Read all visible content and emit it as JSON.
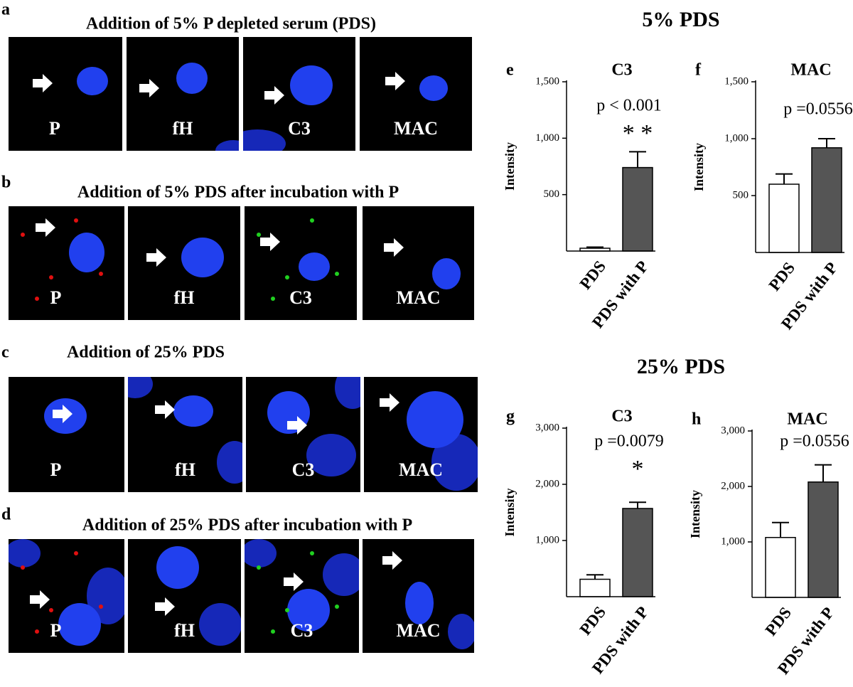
{
  "image_panels": [
    {
      "letter": "a",
      "title": "Addition of 5% P depleted serum (PDS)",
      "labels": [
        "P",
        "fH",
        "C3",
        "MAC"
      ]
    },
    {
      "letter": "b",
      "title": "Addition of 5% PDS after incubation with P",
      "labels": [
        "P",
        "fH",
        "C3",
        "MAC"
      ]
    },
    {
      "letter": "c",
      "title": "Addition of 25% PDS",
      "labels": [
        "P",
        "fH",
        "C3",
        "MAC"
      ]
    },
    {
      "letter": "d",
      "title": "Addition of 25% PDS after incubation with P",
      "labels": [
        "P",
        "fH",
        "C3",
        "MAC"
      ]
    }
  ],
  "sections": [
    "5% PDS",
    "25% PDS"
  ],
  "chart_data": [
    {
      "type": "bar",
      "panel": "e",
      "title": "C3",
      "ylabel": "Intensity",
      "annotation": "p < 0.001",
      "significance": "* *",
      "categories": [
        "PDS",
        "PDS with P"
      ],
      "values": [
        25,
        740
      ],
      "errors": [
        10,
        140
      ],
      "colors": [
        "#ffffff",
        "#555555"
      ],
      "ylim": [
        0,
        1500
      ],
      "yticks": [
        {
          "value": 500,
          "label": "500"
        },
        {
          "value": 1000,
          "label": "1,000"
        },
        {
          "value": 1500,
          "label": "1,500"
        }
      ]
    },
    {
      "type": "bar",
      "panel": "f",
      "title": "MAC",
      "ylabel": "Intensity",
      "annotation": "p =0.0556",
      "categories": [
        "PDS",
        "PDS with P"
      ],
      "values": [
        600,
        920
      ],
      "errors": [
        90,
        80
      ],
      "colors": [
        "#ffffff",
        "#555555"
      ],
      "ylim": [
        0,
        1500
      ],
      "yticks": [
        {
          "value": 500,
          "label": "500"
        },
        {
          "value": 1000,
          "label": "1,000"
        },
        {
          "value": 1500,
          "label": "1,500"
        }
      ]
    },
    {
      "type": "bar",
      "panel": "g",
      "title": "C3",
      "ylabel": "Intensity",
      "annotation": "p =0.0079",
      "significance": "*",
      "categories": [
        "PDS",
        "PDS with P"
      ],
      "values": [
        310,
        1570
      ],
      "errors": [
        80,
        110
      ],
      "colors": [
        "#ffffff",
        "#555555"
      ],
      "ylim": [
        0,
        3000
      ],
      "yticks": [
        {
          "value": 1000,
          "label": "1,000"
        },
        {
          "value": 2000,
          "label": "2,000"
        },
        {
          "value": 3000,
          "label": "3,000"
        }
      ]
    },
    {
      "type": "bar",
      "panel": "h",
      "title": "MAC",
      "ylabel": "Intensity",
      "annotation": "p =0.0556",
      "categories": [
        "PDS",
        "PDS with P"
      ],
      "values": [
        1080,
        2080
      ],
      "errors": [
        270,
        310
      ],
      "colors": [
        "#ffffff",
        "#555555"
      ],
      "ylim": [
        0,
        3000
      ],
      "yticks": [
        {
          "value": 1000,
          "label": "1,000"
        },
        {
          "value": 2000,
          "label": "2,000"
        },
        {
          "value": 3000,
          "label": "3,000"
        }
      ]
    }
  ]
}
